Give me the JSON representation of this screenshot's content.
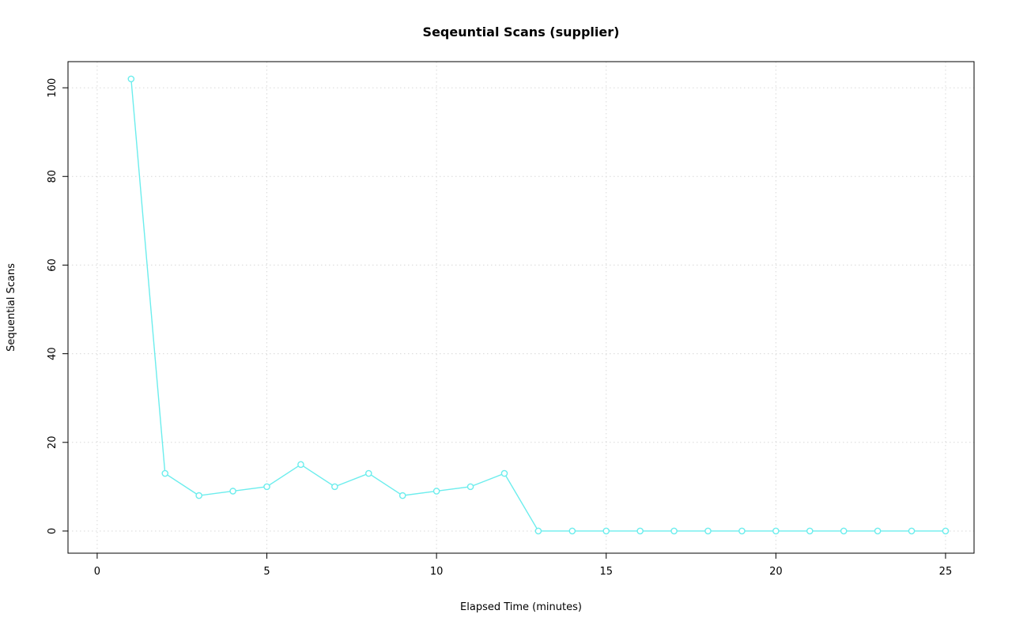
{
  "chart_data": {
    "type": "line",
    "title": "Seqeuntial Scans (supplier)",
    "xlabel": "Elapsed Time (minutes)",
    "ylabel": "Sequential Scans",
    "x": [
      1,
      2,
      3,
      4,
      5,
      6,
      7,
      8,
      9,
      10,
      11,
      12,
      13,
      14,
      15,
      16,
      17,
      18,
      19,
      20,
      21,
      22,
      23,
      24,
      25
    ],
    "y": [
      102,
      13,
      8,
      9,
      10,
      15,
      10,
      13,
      8,
      9,
      10,
      13,
      0,
      0,
      0,
      0,
      0,
      0,
      0,
      0,
      0,
      0,
      0,
      0,
      0
    ],
    "xlim": [
      -0.86,
      25.84
    ],
    "ylim": [
      -5,
      105.9
    ],
    "xticks": [
      0,
      5,
      10,
      15,
      20,
      25
    ],
    "yticks": [
      0,
      20,
      40,
      60,
      80,
      100
    ],
    "grid": true,
    "legend": "none",
    "marker": "open-circle",
    "series_color": "#6CEDED",
    "grid_color": "#D8D8D8",
    "axis_color": "#000000",
    "background_color": "#FFFFFF"
  }
}
